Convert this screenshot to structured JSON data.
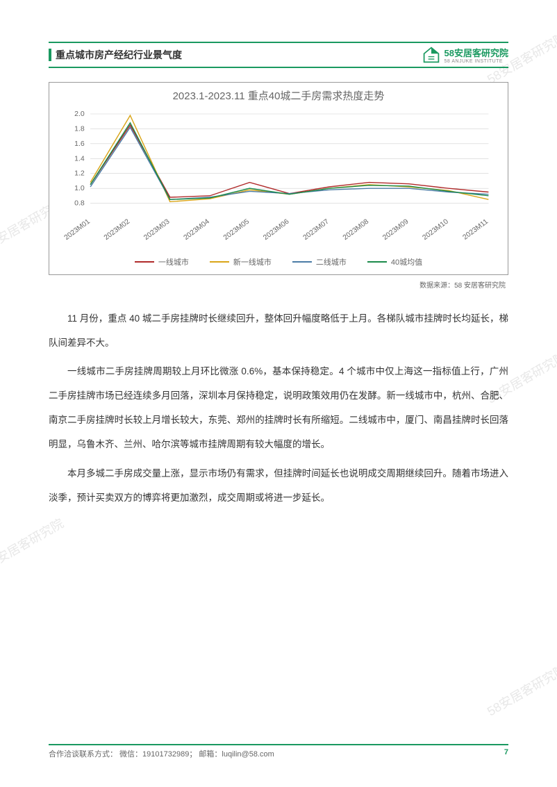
{
  "header": {
    "title": "重点城市房产经纪行业景气度",
    "brand": "58安居客研究院",
    "brand_sub": "58 ANJUKE INSTITUTE"
  },
  "chart": {
    "type": "line",
    "title": "2023.1-2023.11 重点40城二手房需求热度走势",
    "title_fontsize": 15,
    "title_color": "#666666",
    "categories": [
      "2023M01",
      "2023M02",
      "2023M03",
      "2023M04",
      "2023M05",
      "2023M06",
      "2023M07",
      "2023M08",
      "2023M09",
      "2023M10",
      "2023M11"
    ],
    "ylim": [
      0.6,
      2.0
    ],
    "yticks": [
      0.8,
      1.0,
      1.2,
      1.4,
      1.6,
      1.8,
      2.0
    ],
    "series": [
      {
        "name": "一线城市",
        "color": "#b02a2a",
        "values": [
          1.05,
          1.85,
          0.88,
          0.9,
          1.08,
          0.93,
          1.02,
          1.08,
          1.06,
          1.0,
          0.95
        ]
      },
      {
        "name": "新一线城市",
        "color": "#d9a518",
        "values": [
          1.08,
          1.98,
          0.82,
          0.86,
          0.98,
          0.92,
          1.0,
          1.05,
          1.02,
          0.97,
          0.85
        ]
      },
      {
        "name": "二线城市",
        "color": "#4a7ba6",
        "values": [
          1.02,
          1.82,
          0.85,
          0.88,
          0.96,
          0.93,
          0.98,
          1.0,
          1.0,
          0.95,
          0.92
        ]
      },
      {
        "name": "40城均值",
        "color": "#1a8a4a",
        "values": [
          1.05,
          1.88,
          0.85,
          0.87,
          1.0,
          0.92,
          1.0,
          1.04,
          1.03,
          0.96,
          0.9
        ]
      }
    ],
    "grid_color": "#d0d0d0",
    "background_color": "#ffffff",
    "line_width": 1.4,
    "axis_fontsize": 10,
    "legend_fontsize": 11
  },
  "source_label": "数据来源：58 安居客研究院",
  "paragraphs": [
    "11 月份，重点 40 城二手房挂牌时长继续回升，整体回升幅度略低于上月。各梯队城市挂牌时长均延长，梯队间差异不大。",
    "一线城市二手房挂牌周期较上月环比微涨 0.6%，基本保持稳定。4 个城市中仅上海这一指标值上行，广州二手房挂牌市场已经连续多月回落，深圳本月保持稳定，说明政策效用仍在发酵。新一线城市中，杭州、合肥、南京二手房挂牌时长较上月增长较大，东莞、郑州的挂牌时长有所缩短。二线城市中，厦门、南昌挂牌时长回落明显，乌鲁木齐、兰州、哈尔滨等城市挂牌周期有较大幅度的增长。",
    "本月多城二手房成交量上涨，显示市场仍有需求，但挂牌时间延长也说明成交周期继续回升。随着市场进入淡季，预计买卖双方的博弈将更加激烈，成交周期或将进一步延长。"
  ],
  "footer": {
    "contact": "合作洽谈联系方式：  微信：19101732989；  邮箱：luqilin@58.com",
    "page": "7"
  },
  "watermark_text": "58安居客研究院",
  "colors": {
    "brand_green": "#1a9960",
    "text": "#333333",
    "muted": "#666666"
  }
}
